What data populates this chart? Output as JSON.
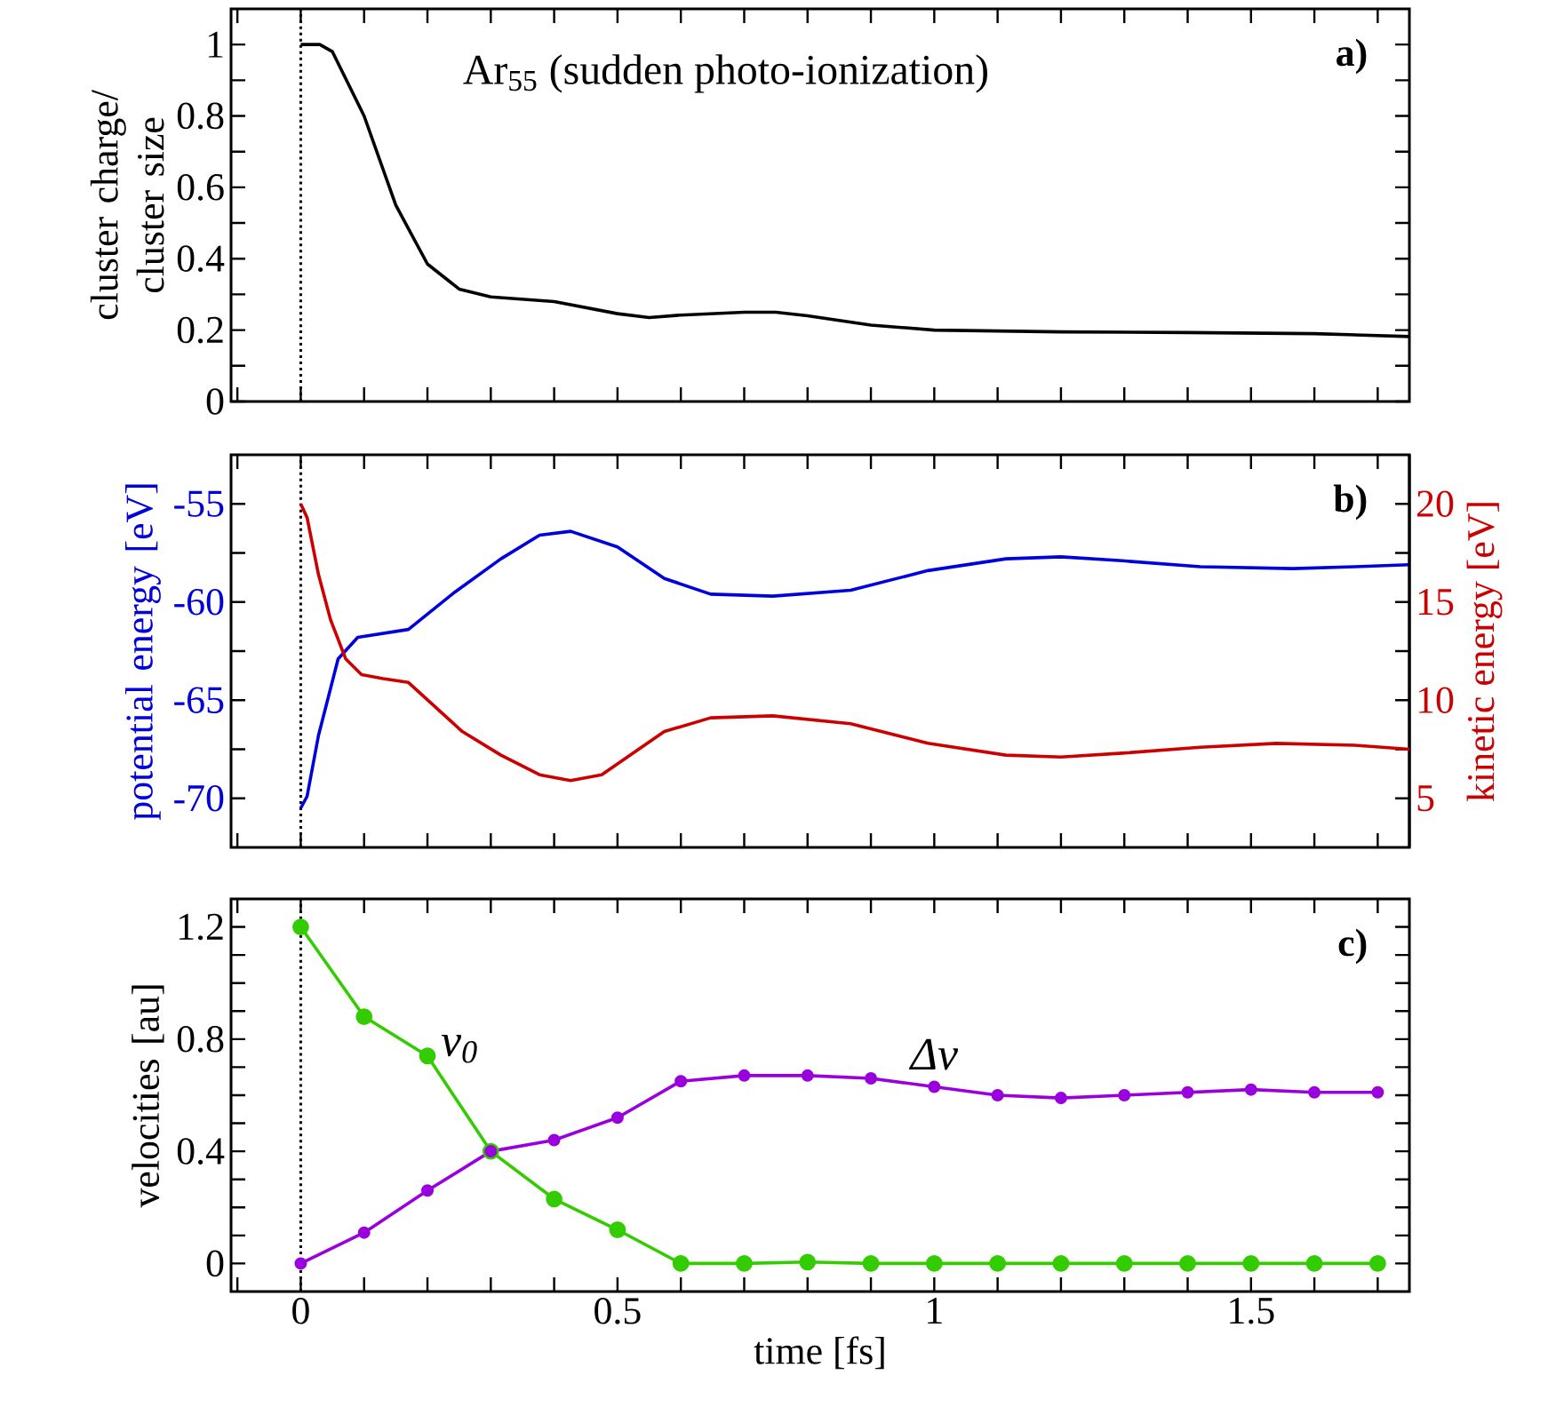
{
  "chart_data": [
    {
      "type": "line",
      "title": "a)",
      "ylabel": "cluster charge/ cluster size",
      "annotations": [
        "Ar$_{55}$ (sudden photo-ionization)"
      ],
      "xlim": [
        -0.11,
        1.75
      ],
      "ylim": [
        0,
        1.1
      ],
      "tick_labels": "y",
      "marker": "none",
      "xticks": [
        {
          "value": -0.1,
          "label": null
        },
        0,
        {
          "value": 0.1,
          "label": null
        },
        {
          "value": 0.2,
          "label": null
        },
        {
          "value": 0.3,
          "label": null
        },
        {
          "value": 0.4,
          "label": null
        },
        0.5,
        {
          "value": 0.6,
          "label": null
        },
        {
          "value": 0.7,
          "label": null
        },
        {
          "value": 0.8,
          "label": null
        },
        {
          "value": 0.9,
          "label": null
        },
        1,
        {
          "value": 1.1,
          "label": null
        },
        {
          "value": 1.2,
          "label": null
        },
        {
          "value": 1.3,
          "label": null
        },
        {
          "value": 1.4,
          "label": null
        },
        1.5,
        {
          "value": 1.6,
          "label": null
        },
        {
          "value": 1.7,
          "label": null
        }
      ],
      "yticks": [
        0,
        {
          "value": 0.1,
          "label": null
        },
        0.2,
        {
          "value": 0.3,
          "label": null
        },
        0.4,
        {
          "value": 0.5,
          "label": null
        },
        0.6,
        {
          "value": 0.7,
          "label": null
        },
        0.8,
        {
          "value": 0.9,
          "label": null
        },
        1
      ],
      "ref_lines": [
        {
          "axis": "x",
          "value": 0,
          "line_style": "dotted",
          "color": "#000000"
        }
      ],
      "series": [
        {
          "color": "#000000",
          "x": [
            0,
            0.03,
            0.05,
            0.1,
            0.15,
            0.2,
            0.25,
            0.3,
            0.4,
            0.5,
            0.55,
            0.6,
            0.7,
            0.75,
            0.8,
            0.9,
            1.0,
            1.2,
            1.4,
            1.6,
            1.75
          ],
          "values": [
            1,
            1,
            0.98,
            0.8,
            0.55,
            0.385,
            0.315,
            0.293,
            0.28,
            0.246,
            0.235,
            0.242,
            0.25,
            0.25,
            0.24,
            0.214,
            0.2,
            0.195,
            0.193,
            0.19,
            0.182
          ]
        }
      ]
    },
    {
      "type": "line",
      "title": "b)",
      "ylabel": "potential energy [eV]",
      "y2label": "kinetic energy [eV]",
      "xlim": [
        -0.11,
        1.75
      ],
      "ylim": [
        -72.5,
        -52.5
      ],
      "y2lim": [
        2.5,
        22.5
      ],
      "tick_labels": "y",
      "marker": "none",
      "xticks": [
        {
          "value": -0.1,
          "label": null
        },
        0,
        {
          "value": 0.1,
          "label": null
        },
        {
          "value": 0.2,
          "label": null
        },
        {
          "value": 0.3,
          "label": null
        },
        {
          "value": 0.4,
          "label": null
        },
        0.5,
        {
          "value": 0.6,
          "label": null
        },
        {
          "value": 0.7,
          "label": null
        },
        {
          "value": 0.8,
          "label": null
        },
        {
          "value": 0.9,
          "label": null
        },
        1,
        {
          "value": 1.1,
          "label": null
        },
        {
          "value": 1.2,
          "label": null
        },
        {
          "value": 1.3,
          "label": null
        },
        {
          "value": 1.4,
          "label": null
        },
        1.5,
        {
          "value": 1.6,
          "label": null
        },
        {
          "value": 1.7,
          "label": null
        }
      ],
      "yticks": [
        -70,
        {
          "value": -67.5,
          "label": null
        },
        -65,
        {
          "value": -62.5,
          "label": null
        },
        -60,
        {
          "value": -57.5,
          "label": null
        },
        -55
      ],
      "y2ticks": [
        5,
        {
          "value": 7.5,
          "label": null
        },
        10,
        {
          "value": 12.5,
          "label": null
        },
        15,
        {
          "value": 17.5,
          "label": null
        },
        20
      ],
      "ref_lines": [
        {
          "axis": "x",
          "value": 0,
          "line_style": "dotted",
          "color": "#000000"
        }
      ],
      "series": [
        {
          "color": "#0000dd",
          "x": [
            0,
            0.01,
            0.028,
            0.059,
            0.09,
            0.13,
            0.17,
            0.243,
            0.316,
            0.377,
            0.426,
            0.5,
            0.574,
            0.647,
            0.745,
            0.868,
            0.99,
            1.113,
            1.2,
            1.297,
            1.42,
            1.566,
            1.664,
            1.75
          ],
          "values": [
            -70.5,
            -69.9,
            -66.8,
            -62.9,
            -61.8,
            -61.6,
            -61.4,
            -59.5,
            -57.8,
            -56.6,
            -56.4,
            -57.2,
            -58.8,
            -59.6,
            -59.7,
            -59.4,
            -58.4,
            -57.8,
            -57.7,
            -57.9,
            -58.2,
            -58.3,
            -58.2,
            -58.1
          ]
        },
        {
          "color": "#cc0000",
          "axis": "y2",
          "x": [
            0,
            0.01,
            0.028,
            0.047,
            0.071,
            0.096,
            0.13,
            0.17,
            0.255,
            0.316,
            0.377,
            0.426,
            0.475,
            0.574,
            0.647,
            0.745,
            0.868,
            0.99,
            1.113,
            1.2,
            1.297,
            1.42,
            1.54,
            1.664,
            1.75
          ],
          "values": [
            20,
            19.3,
            16.4,
            14.1,
            12.1,
            11.3,
            11.1,
            10.9,
            8.4,
            7.2,
            6.2,
            5.9,
            6.2,
            8.4,
            9.1,
            9.2,
            8.8,
            7.8,
            7.2,
            7.1,
            7.3,
            7.6,
            7.8,
            7.7,
            7.5
          ]
        }
      ]
    },
    {
      "type": "line",
      "title": "c)",
      "xlabel": "time [fs]",
      "ylabel": "velocities [au]",
      "xlim": [
        -0.11,
        1.75
      ],
      "ylim": [
        -0.1,
        1.3
      ],
      "marker": "circle",
      "xticks": [
        {
          "value": -0.1,
          "label": null
        },
        0,
        {
          "value": 0.1,
          "label": null
        },
        {
          "value": 0.2,
          "label": null
        },
        {
          "value": 0.3,
          "label": null
        },
        {
          "value": 0.4,
          "label": null
        },
        0.5,
        {
          "value": 0.6,
          "label": null
        },
        {
          "value": 0.7,
          "label": null
        },
        {
          "value": 0.8,
          "label": null
        },
        {
          "value": 0.9,
          "label": null
        },
        1,
        {
          "value": 1.1,
          "label": null
        },
        {
          "value": 1.2,
          "label": null
        },
        {
          "value": 1.3,
          "label": null
        },
        {
          "value": 1.4,
          "label": null
        },
        1.5,
        {
          "value": 1.6,
          "label": null
        },
        {
          "value": 1.7,
          "label": null
        }
      ],
      "yticks": [
        0,
        {
          "value": 0.1,
          "label": null
        },
        {
          "value": 0.2,
          "label": null
        },
        {
          "value": 0.3,
          "label": null
        },
        0.4,
        {
          "value": 0.5,
          "label": null
        },
        {
          "value": 0.6,
          "label": null
        },
        {
          "value": 0.7,
          "label": null
        },
        0.8,
        {
          "value": 0.9,
          "label": null
        },
        {
          "value": 1.0,
          "label": null
        },
        {
          "value": 1.1,
          "label": null
        },
        1.2
      ],
      "ref_lines": [
        {
          "axis": "x",
          "value": 0,
          "line_style": "dotted",
          "color": "#000000"
        }
      ],
      "x": [
        0,
        0.1,
        0.2,
        0.3,
        0.4,
        0.5,
        0.6,
        0.7,
        0.8,
        0.9,
        1.0,
        1.1,
        1.2,
        1.3,
        1.4,
        1.5,
        1.6,
        1.7
      ],
      "series": [
        {
          "name": "v$_{0}$",
          "color": "#33cc00",
          "values": [
            1.2,
            0.88,
            0.74,
            0.4,
            0.23,
            0.12,
            0,
            0,
            0.005,
            0,
            0,
            0,
            0,
            0,
            0,
            0,
            0,
            0
          ]
        },
        {
          "name": "Δv",
          "color": "#9900dd",
          "values": [
            0,
            0.11,
            0.26,
            0.4,
            0.44,
            0.52,
            0.65,
            0.67,
            0.67,
            0.66,
            0.63,
            0.6,
            0.59,
            0.6,
            0.61,
            0.62,
            0.61,
            0.61
          ]
        }
      ]
    }
  ]
}
